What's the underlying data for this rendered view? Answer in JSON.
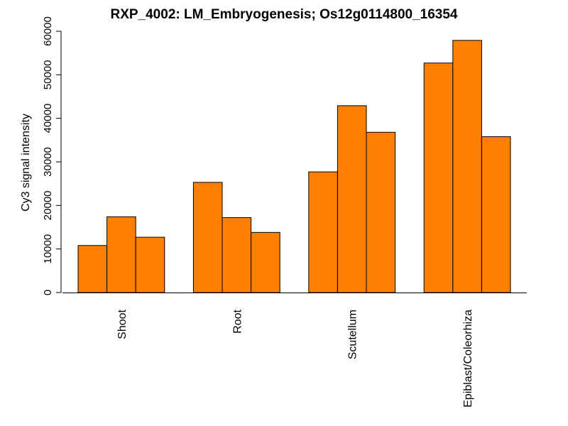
{
  "chart_data": {
    "type": "bar",
    "title": "RXP_4002: LM_Embryogenesis; Os12g0114800_16354",
    "ylabel": "Cy3 signal intensity",
    "xlabel": "",
    "ylim": [
      0,
      60000
    ],
    "yticks": [
      0,
      10000,
      20000,
      30000,
      40000,
      50000,
      60000
    ],
    "categories": [
      "Shoot",
      "Root",
      "Scutellum",
      "Epiblast/Coleorhiza"
    ],
    "values": [
      [
        10800,
        17400,
        12700
      ],
      [
        25300,
        17200,
        13800
      ],
      [
        27700,
        42900,
        36800
      ],
      [
        52700,
        57900,
        35800
      ]
    ],
    "bar_color": "#ff8000",
    "grid": false,
    "legend": "none"
  }
}
